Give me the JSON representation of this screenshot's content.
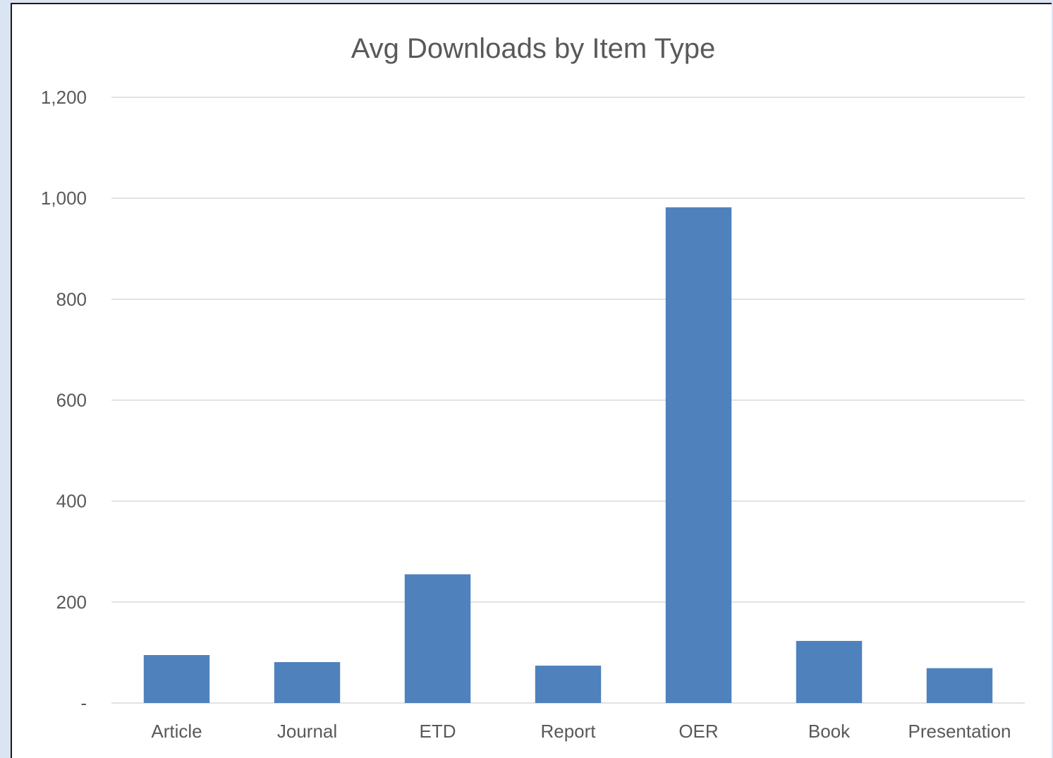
{
  "chart_data": {
    "type": "bar",
    "title": "Avg Downloads by Item Type",
    "xlabel": "",
    "ylabel": "",
    "categories": [
      "Article",
      "Journal",
      "ETD",
      "Report",
      "OER",
      "Book",
      "Presentation"
    ],
    "values": [
      95,
      81,
      255,
      74,
      982,
      123,
      69
    ],
    "ylim": [
      0,
      1200
    ],
    "yticks": [
      0,
      200,
      400,
      600,
      800,
      1000,
      1200
    ],
    "ytick_labels": [
      "-",
      "200",
      "400",
      "600",
      "800",
      "1,000",
      "1,200"
    ],
    "grid": true,
    "legend": "none",
    "bar_color": "#4f81bd"
  }
}
